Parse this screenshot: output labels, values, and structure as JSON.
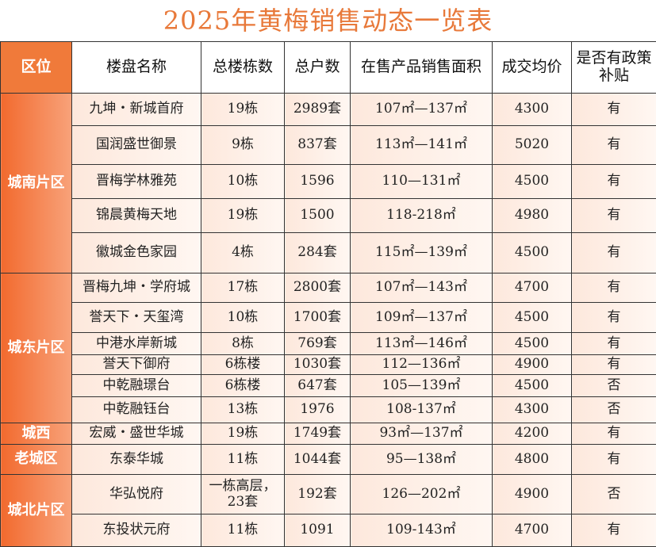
{
  "header": {
    "title": "2025年黄梅销售动态一览表"
  },
  "table": {
    "columns": [
      "区位",
      "楼盘名称",
      "总楼栋数",
      "总户数",
      "在售产品销售面积",
      "成交均价",
      "是否有政策补贴"
    ],
    "regions": [
      {
        "name": "城南片区",
        "rows": [
          [
            "九坤・新城首府",
            "19栋",
            "2989套",
            "107㎡—137㎡",
            "4300",
            "有"
          ],
          [
            "国润盛世御景",
            "9栋",
            "837套",
            "113㎡—141㎡",
            "5020",
            "有"
          ],
          [
            "晋梅学林雅苑",
            "10栋",
            "1596",
            "110—131㎡",
            "4500",
            "有"
          ],
          [
            "锦晨黄梅天地",
            "19栋",
            "1500",
            "118-218㎡",
            "4980",
            "有"
          ],
          [
            "徽城金色家园",
            "4栋",
            "284套",
            "115㎡—139㎡",
            "4500",
            "有"
          ]
        ]
      },
      {
        "name": "城东片区",
        "rows": [
          [
            "晋梅九坤・学府城",
            "17栋",
            "2800套",
            "107㎡—143㎡",
            "4700",
            "有"
          ],
          [
            "誉天下・天玺湾",
            "10栋",
            "1700套",
            "109㎡—137㎡",
            "4500",
            "有"
          ],
          [
            "中港水岸新城",
            "8栋",
            "769套",
            "113㎡—146㎡",
            "4500",
            "有"
          ],
          [
            "誉天下御府",
            "6栋楼",
            "1030套",
            "112—136㎡",
            "4900",
            "有"
          ],
          [
            "中乾融璟台",
            "6栋楼",
            "647套",
            "105—139㎡",
            "4500",
            "否"
          ],
          [
            "中乾融钰台",
            "13栋",
            "1976",
            "108-137㎡",
            "4300",
            "否"
          ]
        ]
      },
      {
        "name": "城西",
        "rows": [
          [
            "宏威・盛世华城",
            "19栋",
            "1749套",
            "93㎡—137㎡",
            "4200",
            "有"
          ]
        ]
      },
      {
        "name": "老城区",
        "rows": [
          [
            "东泰华城",
            "11栋",
            "1044套",
            "95—138㎡",
            "4800",
            "有"
          ]
        ]
      },
      {
        "name": "城北片区",
        "rows": [
          [
            "华弘悦府",
            "一栋高层，23套",
            "192套",
            "126—202㎡",
            "4900",
            "否"
          ],
          [
            "东投状元府",
            "11栋",
            "1091",
            "109-143㎡",
            "4700",
            "有"
          ]
        ]
      }
    ]
  }
}
